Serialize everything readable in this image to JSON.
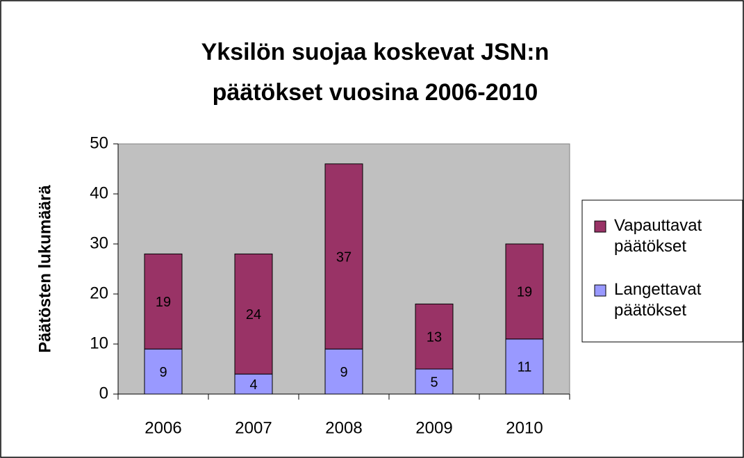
{
  "chart_data": {
    "type": "stacked_bar",
    "title": [
      "Yksilön suojaa koskevat JSN:n",
      "päätökset vuosina 2006-2010"
    ],
    "y_label": "Päätösten lukumäärä",
    "categories": [
      "2006",
      "2007",
      "2008",
      "2009",
      "2010"
    ],
    "series": [
      {
        "name": "Langettavat päätökset",
        "color": "#9999ff",
        "values": [
          9,
          4,
          9,
          5,
          11
        ]
      },
      {
        "name": "Vapauttavat päätökset",
        "color": "#993366",
        "values": [
          19,
          24,
          37,
          13,
          19
        ]
      }
    ],
    "ylim": [
      0,
      50
    ],
    "yticks": [
      0,
      10,
      20,
      30,
      40,
      50
    ],
    "legend": "right",
    "plot_background": "#c0c0c0"
  }
}
